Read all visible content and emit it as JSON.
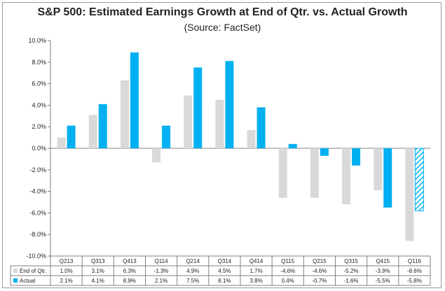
{
  "chart_data": {
    "type": "bar",
    "title": "S&P 500: Estimated Earnings Growth at End of Qtr. vs. Actual Growth",
    "subtitle": "(Source: FactSet)",
    "categories": [
      "Q213",
      "Q313",
      "Q413",
      "Q114",
      "Q214",
      "Q314",
      "Q414",
      "Q115",
      "Q215",
      "Q315",
      "Q415",
      "Q116"
    ],
    "ylim": [
      -10,
      10
    ],
    "yticks": [
      10,
      8,
      6,
      4,
      2,
      0,
      -2,
      -4,
      -6,
      -8,
      -10
    ],
    "ytick_labels": [
      "10.0%",
      "8.0%",
      "6.0%",
      "4.0%",
      "2.0%",
      "0.0%",
      "-2.0%",
      "-4.0%",
      "-6.0%",
      "-8.0%",
      "-10.0%"
    ],
    "series": [
      {
        "name": "End of Qtr.",
        "color": "#d9d9d9",
        "values": [
          1.0,
          3.1,
          6.3,
          -1.3,
          4.9,
          4.5,
          1.7,
          -4.6,
          -4.6,
          -5.2,
          -3.9,
          -8.6
        ],
        "labels": [
          "1.0%",
          "3.1%",
          "6.3%",
          "-1.3%",
          "4.9%",
          "4.5%",
          "1.7%",
          "-4.6%",
          "-4.6%",
          "-5.2%",
          "-3.9%",
          "-8.6%"
        ]
      },
      {
        "name": "Actual",
        "color": "#00b0f0",
        "values": [
          2.1,
          4.1,
          8.9,
          2.1,
          7.5,
          8.1,
          3.8,
          0.4,
          -0.7,
          -1.6,
          -5.5,
          -5.8
        ],
        "labels": [
          "2.1%",
          "4.1%",
          "8.9%",
          "2.1%",
          "7.5%",
          "8.1%",
          "3.8%",
          "0.4%",
          "-0.7%",
          "-1.6%",
          "-5.5%",
          "-5.8%"
        ],
        "hatched_last": true
      }
    ]
  }
}
